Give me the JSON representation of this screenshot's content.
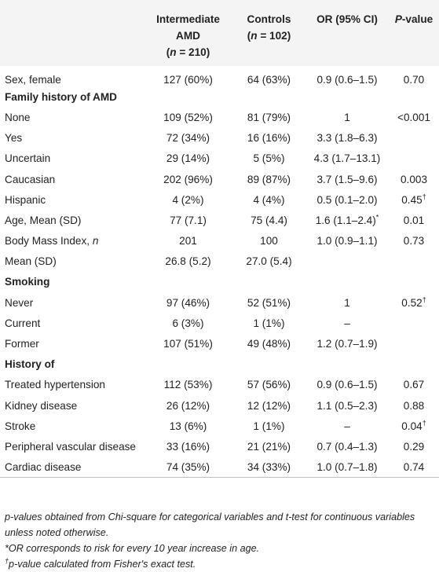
{
  "header": {
    "col0": "",
    "col1_line1": "Intermediate",
    "col1_line2": "AMD",
    "col1_line3": "(n = 210)",
    "col2_line1": "Controls",
    "col2_line2": "(n = 102)",
    "col3": "OR (95% CI)",
    "col4": "P-value"
  },
  "rows": [
    {
      "label": "Sex, female",
      "c1": "127 (60%)",
      "c2": "64 (63%)",
      "c3": "0.9 (0.6–1.5)",
      "c4": "0.70"
    },
    {
      "label": "Family history of AMD",
      "section": true
    },
    {
      "label": "None",
      "c1": "109 (52%)",
      "c2": "81 (79%)",
      "c3": "1",
      "c4": "<0.001"
    },
    {
      "label": "Yes",
      "c1": "72 (34%)",
      "c2": "16 (16%)",
      "c3": "3.3 (1.8–6.3)",
      "c4": ""
    },
    {
      "label": "Uncertain",
      "c1": "29 (14%)",
      "c2": "5 (5%)",
      "c3": "4.3 (1.7–13.1)",
      "c4": ""
    },
    {
      "label": "Caucasian",
      "c1": "202 (96%)",
      "c2": "89 (87%)",
      "c3": "3.7 (1.5–9.6)",
      "c4": "0.003"
    },
    {
      "label": "Hispanic",
      "c1": "4 (2%)",
      "c2": "4 (4%)",
      "c3": "0.5 (0.1–2.0)",
      "c4": "0.45",
      "c4_sup": "†"
    },
    {
      "label": "Age, Mean (SD)",
      "c1": "77 (7.1)",
      "c2": "75 (4.4)",
      "c3": "1.6 (1.1–2.4)",
      "c3_sup": "*",
      "c4": "0.01"
    },
    {
      "label": "Body Mass Index, ",
      "label_italic": "n",
      "c1": "201",
      "c2": "100",
      "c3": "1.0 (0.9–1.1)",
      "c4": "0.73"
    },
    {
      "label": "Mean (SD)",
      "c1": "26.8 (5.2)",
      "c2": "27.0 (5.4)",
      "c3": "",
      "c4": ""
    },
    {
      "label": "Smoking",
      "section": true
    },
    {
      "label": "Never",
      "c1": "97 (46%)",
      "c2": "52 (51%)",
      "c3": "1",
      "c4": "0.52",
      "c4_sup": "†"
    },
    {
      "label": "Current",
      "c1": "6 (3%)",
      "c2": "1 (1%)",
      "c3": "–",
      "c4": ""
    },
    {
      "label": "Former",
      "c1": "107 (51%)",
      "c2": "49 (48%)",
      "c3": "1.2 (0.7–1.9)",
      "c4": ""
    },
    {
      "label": "History of",
      "section": true
    },
    {
      "label": "Treated hypertension",
      "c1": "112 (53%)",
      "c2": "57 (56%)",
      "c3": "0.9 (0.6–1.5)",
      "c4": "0.67"
    },
    {
      "label": "Kidney disease",
      "c1": "26 (12%)",
      "c2": "12 (12%)",
      "c3": "1.1 (0.5–2.3)",
      "c4": "0.88"
    },
    {
      "label": "Stroke",
      "c1": "13 (6%)",
      "c2": "1 (1%)",
      "c3": "–",
      "c4": "0.04",
      "c4_sup": "†"
    },
    {
      "label": "Peripheral vascular disease",
      "c1": "33 (16%)",
      "c2": "21 (21%)",
      "c3": "0.7 (0.4–1.3)",
      "c4": "0.29"
    },
    {
      "label": "Cardiac disease",
      "c1": "74 (35%)",
      "c2": "34 (33%)",
      "c3": "1.0 (0.7–1.8)",
      "c4": "0.74"
    }
  ],
  "footnotes": {
    "note1": "p-values obtained from Chi-square for categorical variables and t-test for continuous variables unless noted otherwise.",
    "note2": "*OR corresponds to risk for every 10 year increase in age.",
    "note3_mark": "†",
    "note3": "p-value calculated from Fisher's exact test."
  }
}
